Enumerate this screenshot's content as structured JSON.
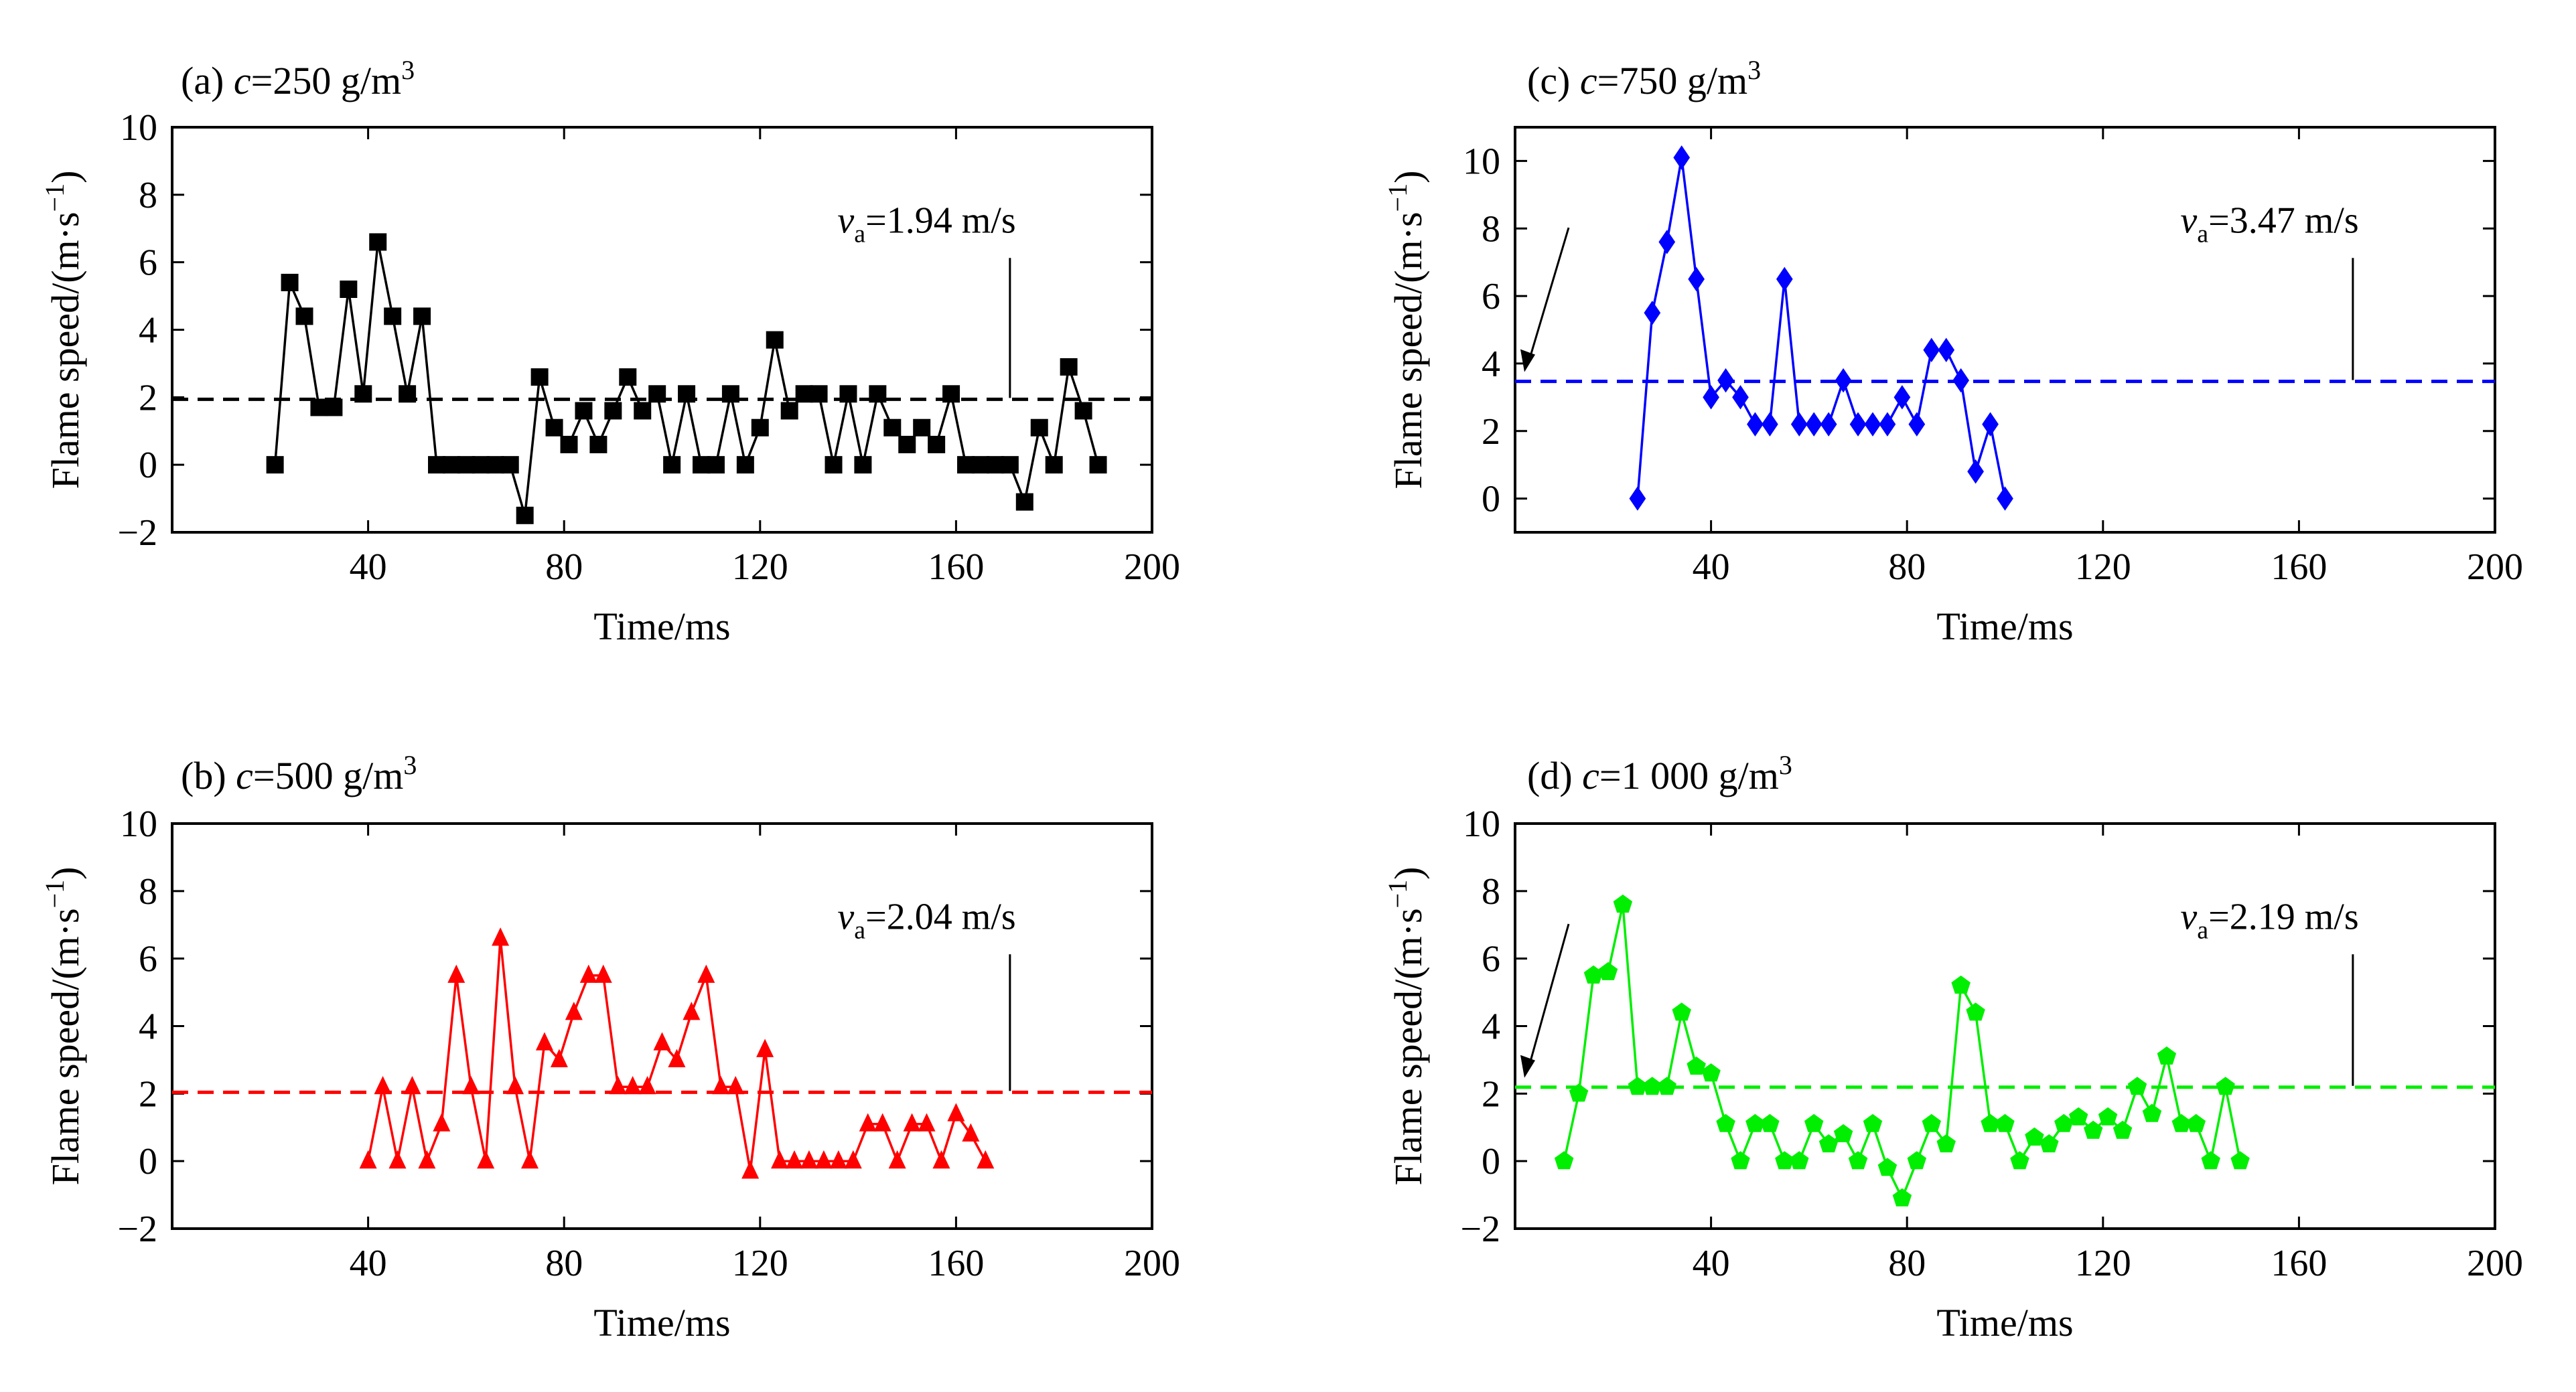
{
  "chart_data": [
    {
      "type": "line",
      "title": {
        "prefix": "(a) ",
        "var": "c",
        "rest": "=250 g/m",
        "sup": "3"
      },
      "xlabel": "Time/ms",
      "ylabel": {
        "main": "Flame speed/(m·s",
        "sup": "−1",
        "close": ")"
      },
      "xlim": [
        0,
        200
      ],
      "ylim": [
        -2,
        10
      ],
      "xticks": [
        40,
        80,
        120,
        160,
        200
      ],
      "yticks": [
        -2,
        0,
        2,
        4,
        6,
        8,
        10
      ],
      "color": "#000000",
      "marker": "square",
      "avg": 1.94,
      "annotation": {
        "var": "v",
        "sub": "a",
        "text": "=1.94 m/s"
      },
      "series": [
        {
          "x": [
            21,
            24,
            27,
            30,
            33,
            36,
            39,
            42,
            45,
            48,
            51,
            54,
            57,
            60,
            63,
            66,
            69,
            72,
            75,
            78,
            81,
            84,
            87,
            90,
            93,
            96,
            99,
            102,
            105,
            108,
            111,
            114,
            117,
            120,
            123,
            126,
            129,
            132,
            135,
            138,
            141,
            144,
            147,
            150,
            153,
            156,
            159,
            162,
            165,
            168,
            171,
            174,
            177,
            180,
            183,
            186,
            189
          ],
          "y": [
            0,
            5.4,
            4.4,
            1.7,
            1.7,
            5.2,
            2.1,
            6.6,
            4.4,
            2.1,
            4.4,
            0,
            0,
            0,
            0,
            0,
            0,
            -1.5,
            2.6,
            1.1,
            0.6,
            1.6,
            0.6,
            1.6,
            2.6,
            1.6,
            2.1,
            0,
            2.1,
            0,
            0,
            2.1,
            0,
            1.1,
            3.7,
            1.6,
            2.1,
            2.1,
            0,
            2.1,
            0,
            2.1,
            1.1,
            0.6,
            1.1,
            0.6,
            2.1,
            0,
            0,
            0,
            0,
            -1.1,
            1.1,
            0,
            2.9,
            1.6,
            0
          ]
        }
      ]
    },
    {
      "type": "line",
      "title": {
        "prefix": "(b) ",
        "var": "c",
        "rest": "=500 g/m",
        "sup": "3"
      },
      "xlabel": "Time/ms",
      "ylabel": {
        "main": "Flame speed/(m·s",
        "sup": "−1",
        "close": ")"
      },
      "xlim": [
        0,
        200
      ],
      "ylim": [
        -2,
        10
      ],
      "xticks": [
        40,
        80,
        120,
        160,
        200
      ],
      "yticks": [
        -2,
        0,
        2,
        4,
        6,
        8,
        10
      ],
      "color": "#ff0000",
      "marker": "triangle",
      "avg": 2.04,
      "annotation": {
        "var": "v",
        "sub": "a",
        "text": "=2.04 m/s"
      },
      "series": [
        {
          "x": [
            40,
            43,
            46,
            49,
            52,
            55,
            58,
            61,
            64,
            67,
            70,
            73,
            76,
            79,
            82,
            85,
            88,
            91,
            94,
            97,
            100,
            103,
            106,
            109,
            112,
            115,
            118,
            121,
            124,
            127,
            130,
            133,
            136,
            139,
            142,
            145,
            148,
            151,
            154,
            157,
            160,
            163,
            166
          ],
          "y": [
            0,
            2.2,
            0,
            2.2,
            0,
            1.1,
            5.5,
            2.2,
            0,
            6.6,
            2.2,
            0,
            3.5,
            3.0,
            4.4,
            5.5,
            5.5,
            2.2,
            2.2,
            2.2,
            3.5,
            3.0,
            4.4,
            5.5,
            2.2,
            2.2,
            -0.3,
            3.3,
            0,
            0,
            0,
            0,
            0,
            0,
            1.1,
            1.1,
            0,
            1.1,
            1.1,
            0,
            1.4,
            0.8,
            0
          ]
        }
      ]
    },
    {
      "type": "line",
      "title": {
        "prefix": "(c) ",
        "var": "c",
        "rest": "=750 g/m",
        "sup": "3"
      },
      "xlabel": "Time/ms",
      "ylabel": {
        "main": "Flame speed/(m·s",
        "sup": "−1",
        "close": ")"
      },
      "xlim": [
        0,
        200
      ],
      "ylim": [
        -1,
        11
      ],
      "xticks": [
        40,
        80,
        120,
        160,
        200
      ],
      "yticks": [
        0,
        2,
        4,
        6,
        8,
        10
      ],
      "color": "#0000ff",
      "marker": "diamond",
      "avg": 3.47,
      "annotation": {
        "var": "v",
        "sub": "a",
        "text": "=3.47 m/s"
      },
      "series": [
        {
          "x": [
            25,
            28,
            31,
            34,
            37,
            40,
            43,
            46,
            49,
            52,
            55,
            58,
            61,
            64,
            67,
            70,
            73,
            76,
            79,
            82,
            85,
            88,
            91,
            94,
            97,
            100
          ],
          "y": [
            0,
            5.5,
            7.6,
            10.1,
            6.5,
            3.0,
            3.5,
            3.0,
            2.2,
            2.2,
            6.5,
            2.2,
            2.2,
            2.2,
            3.5,
            2.2,
            2.2,
            2.2,
            3.0,
            2.2,
            4.4,
            4.4,
            3.5,
            0.8,
            2.2,
            0
          ]
        }
      ]
    },
    {
      "type": "line",
      "title": {
        "prefix": "(d) ",
        "var": "c",
        "rest": "=1 000 g/m",
        "sup": "3"
      },
      "xlabel": "Time/ms",
      "ylabel": {
        "main": "Flame speed/(m·s",
        "sup": "−1",
        "close": ")"
      },
      "xlim": [
        0,
        200
      ],
      "ylim": [
        -2,
        10
      ],
      "xticks": [
        40,
        80,
        120,
        160,
        200
      ],
      "yticks": [
        -2,
        0,
        2,
        4,
        6,
        8,
        10
      ],
      "color": "#00ee00",
      "marker": "pentagon",
      "avg": 2.19,
      "annotation": {
        "var": "v",
        "sub": "a",
        "text": "=2.19 m/s"
      },
      "series": [
        {
          "x": [
            10,
            13,
            16,
            19,
            22,
            25,
            28,
            31,
            34,
            37,
            40,
            43,
            46,
            49,
            52,
            55,
            58,
            61,
            64,
            67,
            70,
            73,
            76,
            79,
            82,
            85,
            88,
            91,
            94,
            97,
            100,
            103,
            106,
            109,
            112,
            115,
            118,
            121,
            124,
            127,
            130,
            133,
            136,
            139,
            142,
            145,
            148
          ],
          "y": [
            0,
            2.0,
            5.5,
            5.6,
            7.6,
            2.2,
            2.2,
            2.2,
            4.4,
            2.8,
            2.6,
            1.1,
            0,
            1.1,
            1.1,
            0,
            0,
            1.1,
            0.5,
            0.8,
            0,
            1.1,
            -0.2,
            -1.1,
            0,
            1.1,
            0.5,
            5.2,
            4.4,
            1.1,
            1.1,
            0,
            0.7,
            0.5,
            1.1,
            1.3,
            0.9,
            1.3,
            0.9,
            2.2,
            1.4,
            3.1,
            1.1,
            1.1,
            0,
            2.2,
            0
          ]
        }
      ]
    }
  ]
}
